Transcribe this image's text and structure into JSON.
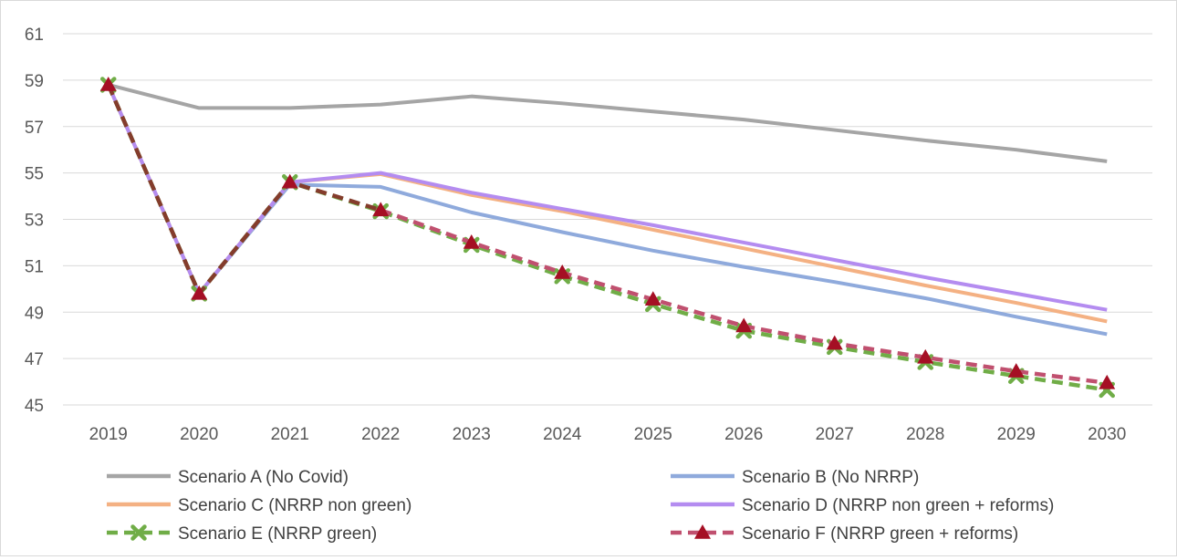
{
  "chart_data": {
    "type": "line",
    "title": "",
    "xlabel": "",
    "ylabel": "",
    "x": [
      "2019",
      "2020",
      "2021",
      "2022",
      "2023",
      "2024",
      "2025",
      "2026",
      "2027",
      "2028",
      "2029",
      "2030"
    ],
    "ylim": [
      45,
      61
    ],
    "yticks": [
      45,
      47,
      49,
      51,
      53,
      55,
      57,
      59,
      61
    ],
    "grid": true,
    "legend_position": "bottom",
    "series": [
      {
        "name": "Scenario A (No Covid)",
        "color": "#a5a5a5",
        "style": "solid",
        "values": [
          58.8,
          57.8,
          57.8,
          57.95,
          58.3,
          58.0,
          57.65,
          57.3,
          56.85,
          56.4,
          56.0,
          55.5
        ]
      },
      {
        "name": "Scenario B (No NRRP)",
        "color": "#8faadc",
        "style": "solid",
        "values": [
          58.8,
          49.8,
          54.5,
          54.4,
          53.3,
          52.45,
          51.65,
          50.95,
          50.3,
          49.6,
          48.8,
          48.05
        ]
      },
      {
        "name": "Scenario C (NRRP  non green)",
        "color": "#f4b183",
        "style": "solid",
        "values": [
          58.8,
          49.8,
          54.6,
          54.95,
          54.05,
          53.35,
          52.55,
          51.75,
          50.95,
          50.15,
          49.4,
          48.6
        ]
      },
      {
        "name": "Scenario D (NRRP non green + reforms)",
        "color": "#b48cf0",
        "style": "solid",
        "values": [
          58.8,
          49.8,
          54.6,
          55.0,
          54.15,
          53.45,
          52.75,
          52.0,
          51.25,
          50.5,
          49.8,
          49.1
        ]
      },
      {
        "name": "Scenario E (NRRP green)",
        "color": "#70ad47",
        "style": "dashed",
        "marker": "x",
        "values": [
          58.8,
          49.8,
          54.6,
          53.35,
          51.9,
          50.55,
          49.35,
          48.2,
          47.5,
          46.85,
          46.25,
          45.65
        ]
      },
      {
        "name": "Scenario F (NRRP green + reforms)",
        "color": "#c0506f",
        "style": "dashed",
        "marker": "triangle",
        "marker_color": "#a50f24",
        "early_color": "#843c2c",
        "values": [
          58.8,
          49.8,
          54.6,
          53.4,
          52.0,
          50.7,
          49.55,
          48.4,
          47.65,
          47.05,
          46.45,
          45.95
        ]
      }
    ]
  }
}
